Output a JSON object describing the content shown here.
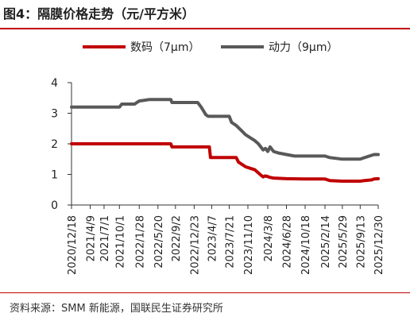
{
  "figure": {
    "title": "图4：隔膜价格走势（元/平方米）",
    "source": "资料来源：SMM 新能源，国联民生证券研究所"
  },
  "chart_data": {
    "type": "line",
    "title": "图4：隔膜价格走势（元/平方米）",
    "xlabel": "",
    "ylabel": "",
    "ylim": [
      0,
      4
    ],
    "yticks": [
      0,
      1,
      2,
      3,
      4
    ],
    "xtick_labels": [
      "2020/12/18",
      "2021/4/9",
      "2021/7/1",
      "2021/10/1",
      "2022/1/28",
      "2022/5/20",
      "2022/9/2",
      "2022/12/23",
      "2023/4/7",
      "2023/7/21",
      "2023/11/10",
      "2024/3/8",
      "2024/6/28",
      "2024/10/18",
      "2025/2/14",
      "2025/5/29",
      "2025/9/13",
      "2025/12/30"
    ],
    "grid": false,
    "legend_position": "top",
    "series": [
      {
        "name": "数码（7μm）",
        "color": "#c00000",
        "points": [
          [
            "2020/12/18",
            2.0
          ],
          [
            "2022/8/5",
            2.0
          ],
          [
            "2022/8/12",
            1.9
          ],
          [
            "2023/3/24",
            1.9
          ],
          [
            "2023/3/31",
            1.55
          ],
          [
            "2023/9/1",
            1.55
          ],
          [
            "2023/9/15",
            1.4
          ],
          [
            "2023/10/13",
            1.3
          ],
          [
            "2023/10/27",
            1.25
          ],
          [
            "2023/11/24",
            1.2
          ],
          [
            "2023/12/22",
            1.15
          ],
          [
            "2024/1/12",
            1.05
          ],
          [
            "2024/1/26",
            0.98
          ],
          [
            "2024/2/9",
            0.92
          ],
          [
            "2024/2/23",
            0.95
          ],
          [
            "2024/3/8",
            0.93
          ],
          [
            "2024/3/22",
            0.9
          ],
          [
            "2024/4/12",
            0.88
          ],
          [
            "2024/6/28",
            0.86
          ],
          [
            "2024/10/18",
            0.85
          ],
          [
            "2025/2/14",
            0.85
          ],
          [
            "2025/3/14",
            0.8
          ],
          [
            "2025/5/29",
            0.78
          ],
          [
            "2025/9/13",
            0.78
          ],
          [
            "2025/10/10",
            0.8
          ],
          [
            "2025/11/21",
            0.82
          ],
          [
            "2025/12/5",
            0.85
          ],
          [
            "2025/12/30",
            0.86
          ]
        ]
      },
      {
        "name": "动力（9μm）",
        "color": "#595959",
        "points": [
          [
            "2020/12/18",
            3.2
          ],
          [
            "2021/10/1",
            3.2
          ],
          [
            "2021/10/15",
            3.3
          ],
          [
            "2021/12/31",
            3.3
          ],
          [
            "2022/1/14",
            3.35
          ],
          [
            "2022/1/28",
            3.4
          ],
          [
            "2022/4/1",
            3.45
          ],
          [
            "2022/8/5",
            3.45
          ],
          [
            "2022/8/12",
            3.35
          ],
          [
            "2022/12/23",
            3.35
          ],
          [
            "2023/1/13",
            3.35
          ],
          [
            "2023/2/3",
            3.2
          ],
          [
            "2023/3/3",
            2.95
          ],
          [
            "2023/3/17",
            2.9
          ],
          [
            "2023/7/21",
            2.9
          ],
          [
            "2023/8/4",
            2.7
          ],
          [
            "2023/9/1",
            2.6
          ],
          [
            "2023/9/29",
            2.45
          ],
          [
            "2023/10/27",
            2.3
          ],
          [
            "2023/11/24",
            2.2
          ],
          [
            "2023/12/22",
            2.1
          ],
          [
            "2024/1/12",
            2.0
          ],
          [
            "2024/1/26",
            1.9
          ],
          [
            "2024/2/9",
            1.8
          ],
          [
            "2024/2/23",
            1.85
          ],
          [
            "2024/3/8",
            1.75
          ],
          [
            "2024/3/22",
            1.9
          ],
          [
            "2024/4/12",
            1.75
          ],
          [
            "2024/5/10",
            1.7
          ],
          [
            "2024/6/28",
            1.65
          ],
          [
            "2024/8/16",
            1.6
          ],
          [
            "2024/10/18",
            1.6
          ],
          [
            "2025/2/14",
            1.6
          ],
          [
            "2025/3/14",
            1.55
          ],
          [
            "2025/5/29",
            1.5
          ],
          [
            "2025/9/13",
            1.5
          ],
          [
            "2025/10/10",
            1.55
          ],
          [
            "2025/11/7",
            1.6
          ],
          [
            "2025/12/5",
            1.65
          ],
          [
            "2025/12/30",
            1.65
          ]
        ]
      }
    ]
  }
}
